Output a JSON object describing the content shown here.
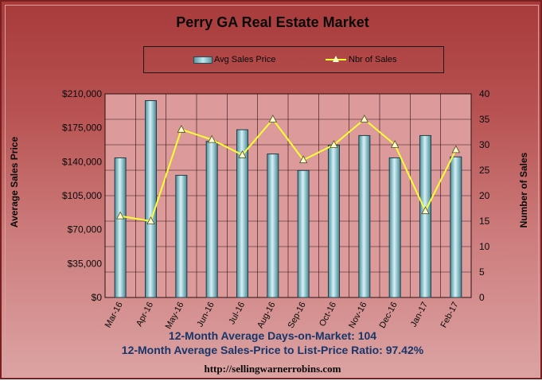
{
  "chart_data": {
    "type": "bar",
    "title": "Perry GA Real Estate Market",
    "categories": [
      "Mar-16",
      "Apr-16",
      "May-16",
      "Jun-16",
      "Jul-16",
      "Aug-16",
      "Sep-16",
      "Oct-16",
      "Nov-16",
      "Dec-16",
      "Jan-17",
      "Feb-17"
    ],
    "series": [
      {
        "name": "Avg Sales Price",
        "type": "bar",
        "axis": "left",
        "values": [
          144000,
          203000,
          126000,
          161000,
          173000,
          148000,
          131000,
          157000,
          167000,
          144000,
          167000,
          145000
        ]
      },
      {
        "name": "Nbr of Sales",
        "type": "line",
        "axis": "right",
        "values": [
          16,
          15,
          33,
          31,
          28,
          35,
          27,
          30,
          35,
          30,
          17,
          29
        ]
      }
    ],
    "ylabel": "Average Sales Price",
    "ylabel_right": "Number of Sales",
    "ylim": [
      0,
      210000
    ],
    "ylim_right": [
      0,
      40
    ],
    "yticks": [
      "$0",
      "$35,000",
      "$70,000",
      "$105,000",
      "$140,000",
      "$175,000",
      "$210,000"
    ],
    "yticks_right": [
      "0",
      "5",
      "10",
      "15",
      "20",
      "25",
      "30",
      "35",
      "40"
    ],
    "legend_position": "top",
    "grid": true,
    "colors": {
      "bar": "#8ccad6",
      "line": "#ffff33",
      "marker": "#ffffcc",
      "plot_bg": "#dc9a9a",
      "stats_text": "#17376b"
    }
  },
  "stats": {
    "days_on_market": "12-Month Average Days-on-Market: 104",
    "price_ratio": "12-Month Average Sales-Price to List-Price Ratio: 97.42%"
  },
  "footer_url": "http://sellingwarnerrobins.com"
}
